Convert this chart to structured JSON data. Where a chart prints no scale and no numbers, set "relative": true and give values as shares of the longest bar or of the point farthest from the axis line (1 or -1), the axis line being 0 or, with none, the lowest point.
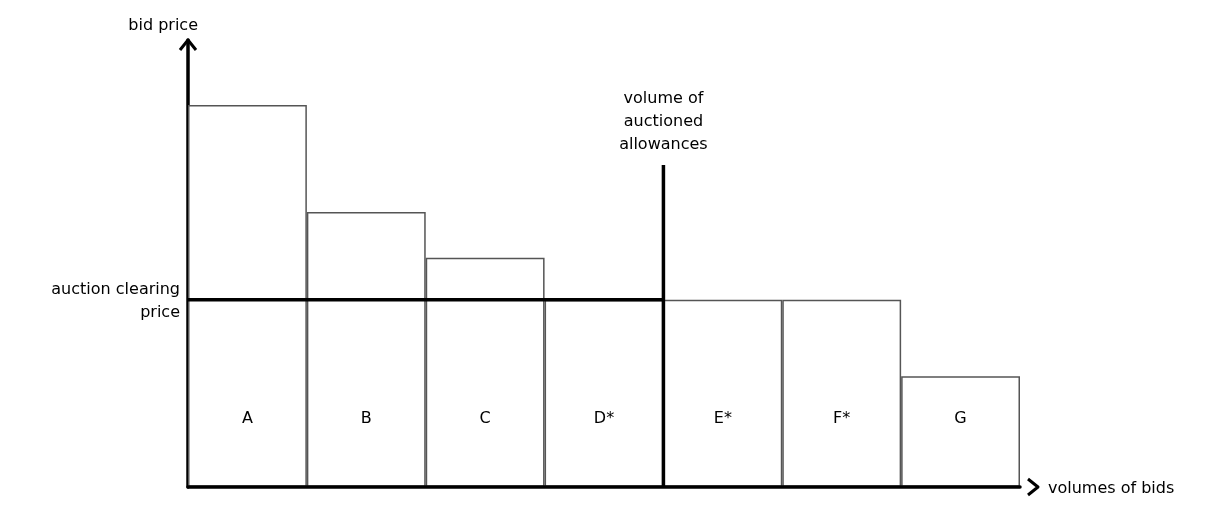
{
  "chart_data": {
    "type": "bar",
    "relative": true,
    "xlabel": "volumes of bids",
    "ylabel": "bid price",
    "categories": [
      "A",
      "B",
      "C",
      "D*",
      "E*",
      "F*",
      "G"
    ],
    "values": [
      1,
      0.72,
      0.6,
      0.49,
      0.49,
      0.49,
      0.29
    ],
    "color": "#ffffff",
    "ref_lines": [
      {
        "axis": "y",
        "value": 0.49,
        "label": "auction clearing price"
      }
    ],
    "annotations": [
      "volume of\nauctioned\nallowances"
    ],
    "grid": false
  }
}
